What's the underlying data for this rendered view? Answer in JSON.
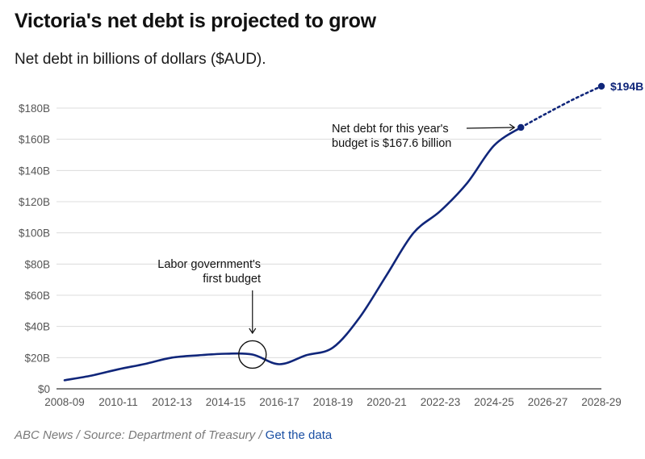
{
  "header": {
    "title": "Victoria's net debt is projected to grow",
    "subtitle": "Net debt in billions of dollars ($AUD)."
  },
  "footer": {
    "source_text": "ABC News / Source: Department of Treasury /",
    "link_label": "Get the data"
  },
  "colors": {
    "line": "#10267a",
    "grid": "#dcdcdc",
    "axis": "#333333",
    "link": "#1a4fa3"
  },
  "chart_data": {
    "type": "line",
    "title": "Victoria's net debt is projected to grow",
    "ylabel": "Net debt in billions of dollars ($AUD)",
    "xlabel": "",
    "ylim": [
      0,
      180
    ],
    "grid": true,
    "x_tick_labels": [
      "2008-09",
      "2010-11",
      "2012-13",
      "2014-15",
      "2016-17",
      "2018-19",
      "2020-21",
      "2022-23",
      "2024-25",
      "2026-27",
      "2028-29"
    ],
    "y_ticks": [
      0,
      20,
      40,
      60,
      80,
      100,
      120,
      140,
      160,
      180
    ],
    "y_tick_labels": [
      "$0",
      "$20B",
      "$40B",
      "$60B",
      "$80B",
      "$100B",
      "$120B",
      "$140B",
      "$160B",
      "$180B"
    ],
    "series": [
      {
        "name": "Net debt",
        "style": "solid",
        "x": [
          2008,
          2009,
          2010,
          2011,
          2012,
          2013,
          2014,
          2015,
          2016,
          2017,
          2018,
          2019,
          2020,
          2021,
          2022,
          2023,
          2024,
          2025
        ],
        "values": [
          5.5,
          8.5,
          12.5,
          16,
          20,
          21.5,
          22.5,
          22,
          15.8,
          21.5,
          26.5,
          46,
          73,
          100,
          114,
          132,
          156,
          167.6
        ]
      },
      {
        "name": "Projected net debt",
        "style": "dotted",
        "x": [
          2025,
          2026,
          2027,
          2028
        ],
        "values": [
          167.6,
          177,
          186,
          194
        ]
      }
    ],
    "annotations": [
      {
        "text": "Labor government's first budget",
        "lines": [
          "Labor government's",
          "first budget"
        ],
        "x": 2015,
        "y": 22
      },
      {
        "text": "Net debt for this year's budget is $167.6 billion",
        "lines": [
          "Net debt for this year's",
          "budget is $167.6 billion"
        ],
        "x": 2025,
        "y": 167.6
      }
    ],
    "end_label": "$194B"
  }
}
